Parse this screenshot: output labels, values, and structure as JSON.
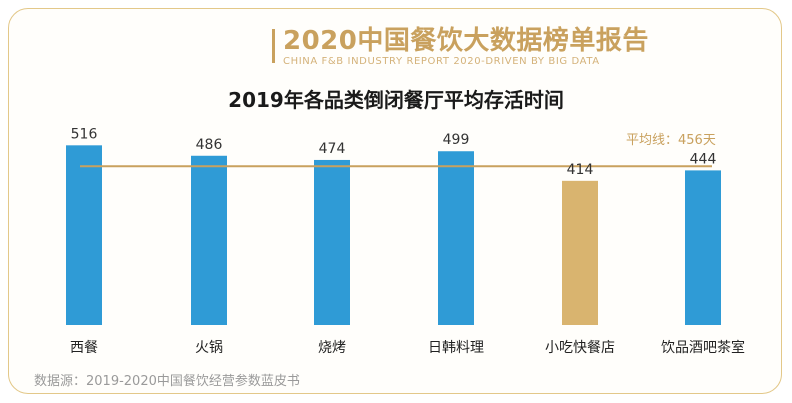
{
  "brand": {
    "title": "2020中国餐饮大数据榜单报告",
    "subtitle": "CHINA F&B INDUSTRY REPORT 2020-DRIVEN BY BIG DATA"
  },
  "source": "数据源：2019-2020中国餐饮经营参数蓝皮书",
  "colors": {
    "bar": "#2f9bd6",
    "highlight_bar": "#d9b46f",
    "avg_line": "#c9a15e",
    "frame": "#e3c889"
  },
  "chart_data": {
    "type": "bar",
    "title": "2019年各品类倒闭餐厅平均存活时间",
    "categories": [
      "西餐",
      "火锅",
      "烧烤",
      "日韩料理",
      "小吃快餐店",
      "饮品酒吧茶室"
    ],
    "values": [
      516,
      486,
      474,
      499,
      414,
      444
    ],
    "highlight_index": 4,
    "average": {
      "label": "平均线：456天",
      "value": 456
    },
    "ylim": [
      0,
      560
    ],
    "grid": false,
    "legend": "none"
  }
}
